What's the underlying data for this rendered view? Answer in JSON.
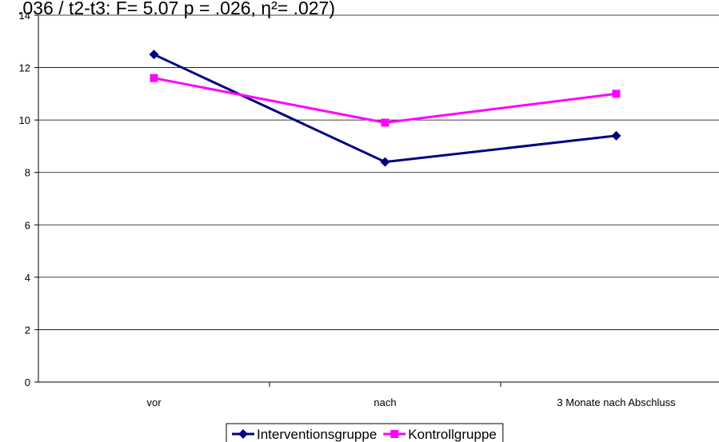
{
  "chart_data": {
    "type": "line",
    "title": ".036 / t2-t3: F= 5.07 p = .026, η²= .027)",
    "categories": [
      "vor",
      "nach",
      "3 Monate nach Abschluss"
    ],
    "series": [
      {
        "name": "Interventionsgruppe",
        "color": "#000080",
        "marker": "diamond",
        "values": [
          12.5,
          8.4,
          9.4
        ]
      },
      {
        "name": "Kontrollgruppe",
        "color": "#ff00ff",
        "marker": "square",
        "values": [
          11.6,
          9.9,
          11.0
        ]
      }
    ],
    "ylim": [
      0,
      14
    ],
    "yticks": [
      0,
      2,
      4,
      6,
      8,
      10,
      12,
      14
    ],
    "grid": true,
    "legend": "bottom"
  }
}
